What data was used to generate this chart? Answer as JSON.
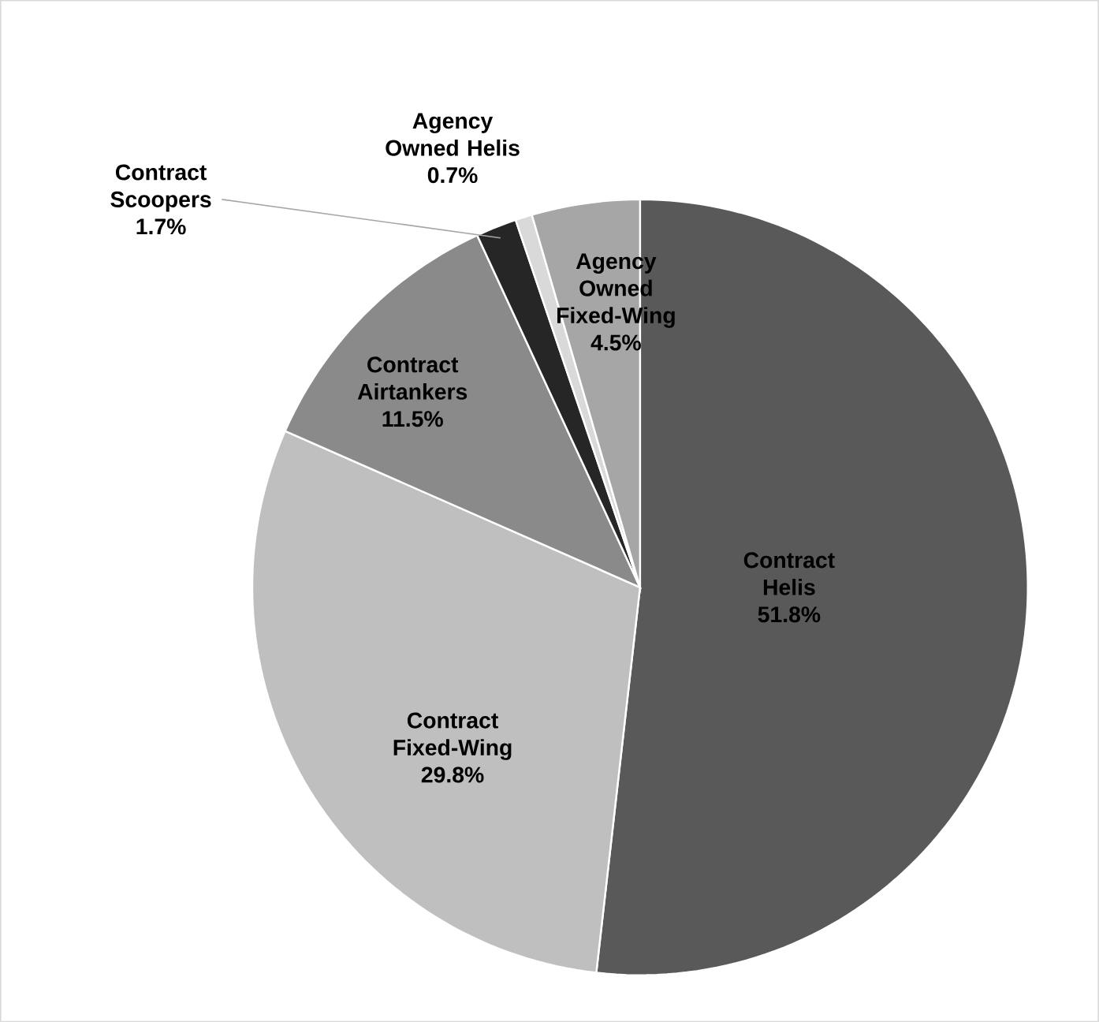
{
  "chart_data": {
    "type": "pie",
    "categories": [
      "Contract Helis",
      "Contract Fixed-Wing",
      "Contract Airtankers",
      "Contract Scoopers",
      "Agency Owned Helis",
      "Agency Owned Fixed-Wing"
    ],
    "values": [
      51.8,
      29.8,
      11.5,
      1.7,
      0.7,
      4.5
    ],
    "value_labels": [
      "51.8%",
      "29.8%",
      "11.5%",
      "1.7%",
      "0.7%",
      "4.5%"
    ],
    "colors": [
      "#595959",
      "#bfbfbf",
      "#8a8a8a",
      "#262626",
      "#d9d9d9",
      "#a6a6a6"
    ]
  }
}
